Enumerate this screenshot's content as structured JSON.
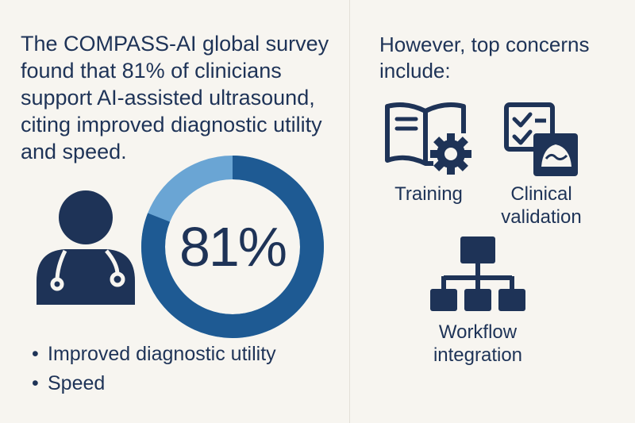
{
  "headline": "The COMPASS-AI global survey found that 81% of clinicians support AI-assisted ultrasound, citing improved diagnostic utility and speed.",
  "stat": {
    "value": "81%",
    "fraction": 0.81
  },
  "bullets": [
    {
      "mark": "•",
      "text": "Improved diagnostic utility"
    },
    {
      "mark": "•",
      "text": "Speed"
    }
  ],
  "concerns_heading": "However, top concerns include:",
  "concerns": [
    {
      "icon": "book-gear-icon",
      "label": "Training"
    },
    {
      "icon": "checklist-ultrasound-icon",
      "label": "Clinical validation"
    },
    {
      "icon": "workflow-hierarchy-icon",
      "label": "Workflow integration"
    }
  ],
  "colors": {
    "navy": "#1e3357",
    "ring_dark": "#1e5a93",
    "ring_light": "#6aa5d4",
    "background": "#f7f5f0"
  }
}
